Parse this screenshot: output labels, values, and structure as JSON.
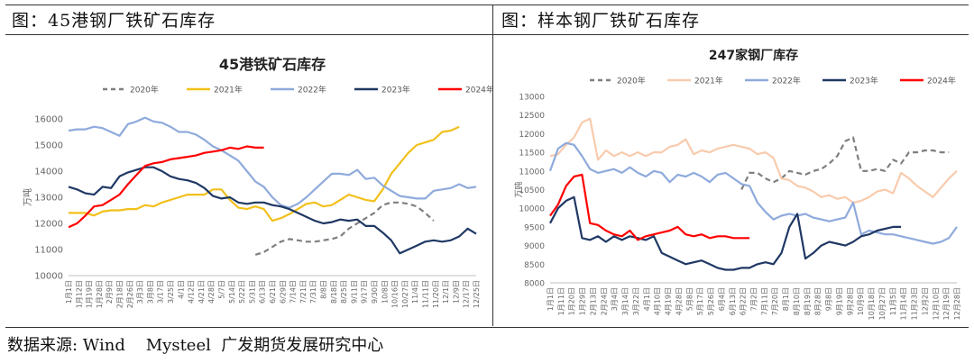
{
  "panels": {
    "left_title": "图：45港钢厂铁矿石库存",
    "right_title": "图：样本钢厂铁矿石库存"
  },
  "source": "数据来源: Wind    Mysteel  广发期货发展研究中心",
  "chart_data": [
    {
      "type": "line",
      "title": "45港铁矿石库存",
      "ylabel": "万吨",
      "ylim": [
        10000,
        16000
      ],
      "yticks": [
        10000,
        11000,
        12000,
        13000,
        14000,
        15000,
        16000
      ],
      "legend_position": "top",
      "xticks": [
        "1月1日",
        "1月12日",
        "1月19日",
        "1月28日",
        "2月9日",
        "2月18日",
        "2月26日",
        "3月3日",
        "3月8日",
        "3/17日",
        "3/25日",
        "4/1日",
        "4/12日",
        "4/21日",
        "4/28日",
        "5/7日",
        "5/14日",
        "5/22日",
        "5/31日",
        "6/13日",
        "6/21日",
        "6/29日",
        "7/14日",
        "7/21日",
        "7/31日",
        "8/8日",
        "8/18日",
        "8/25日",
        "9/11日",
        "9/17日",
        "9/30日",
        "10/8日",
        "10/16日",
        "10/27日",
        "11/4日",
        "11/11日",
        "11/20日",
        "12/1日",
        "12/9日",
        "12/17日",
        "12/25日"
      ],
      "series": [
        {
          "name": "2020年",
          "color": "#7f7f7f",
          "dash": true,
          "values": [
            null,
            null,
            null,
            null,
            null,
            null,
            null,
            null,
            null,
            null,
            null,
            null,
            null,
            null,
            null,
            null,
            null,
            null,
            null,
            null,
            null,
            null,
            10800,
            10900,
            11100,
            11300,
            11400,
            11350,
            11300,
            11300,
            11350,
            11400,
            11500,
            11800,
            12000,
            12200,
            12400,
            12700,
            12800,
            12800,
            12750,
            12650,
            12400,
            12100
          ]
        },
        {
          "name": "2021年",
          "color": "#f2c01b",
          "dash": false,
          "values": [
            12400,
            12400,
            12400,
            12300,
            12450,
            12500,
            12500,
            12550,
            12550,
            12700,
            12650,
            12800,
            12900,
            13000,
            13100,
            13100,
            13100,
            13300,
            13300,
            12900,
            12600,
            12550,
            12650,
            12550,
            12100,
            12200,
            12350,
            12550,
            12750,
            12800,
            12650,
            12700,
            12900,
            13100,
            13000,
            12900,
            12850,
            13300,
            13900,
            14300,
            14700,
            15000,
            15100,
            15200,
            15500,
            15550,
            15700
          ]
        },
        {
          "name": "2022年",
          "color": "#8faadc",
          "dash": false,
          "values": [
            15550,
            15600,
            15600,
            15700,
            15650,
            15500,
            15350,
            15800,
            15900,
            16050,
            15900,
            15850,
            15700,
            15500,
            15500,
            15400,
            15200,
            14950,
            14800,
            14600,
            14400,
            14000,
            13600,
            13400,
            13000,
            12700,
            12600,
            12750,
            13000,
            13300,
            13600,
            13900,
            13900,
            13850,
            14050,
            13700,
            13750,
            13450,
            13250,
            13050,
            13000,
            12950,
            12950,
            13250,
            13300,
            13350,
            13500,
            13350,
            13400
          ]
        },
        {
          "name": "2023年",
          "color": "#1f3864",
          "dash": false,
          "values": [
            13400,
            13300,
            13150,
            13100,
            13400,
            13350,
            13800,
            13950,
            14050,
            14150,
            14150,
            14000,
            13800,
            13700,
            13650,
            13550,
            13350,
            13050,
            12950,
            13000,
            12800,
            12750,
            12800,
            12800,
            12700,
            12650,
            12550,
            12400,
            12250,
            12100,
            12000,
            12050,
            12150,
            12100,
            12150,
            11900,
            11900,
            11650,
            11350,
            10850,
            11000,
            11150,
            11300,
            11350,
            11300,
            11350,
            11500,
            11800,
            11600
          ]
        },
        {
          "name": "2024年",
          "color": "#ff0000",
          "dash": false,
          "values": [
            11850,
            12000,
            12300,
            12650,
            12700,
            12900,
            13100,
            13500,
            13850,
            14200,
            14300,
            14350,
            14450,
            14500,
            14550,
            14600,
            14700,
            14750,
            14800,
            14900,
            14850,
            14950,
            14900,
            14900
          ]
        }
      ]
    },
    {
      "type": "line",
      "title": "247家钢厂库存",
      "ylabel": "万吨",
      "ylim": [
        8000,
        13000
      ],
      "yticks": [
        8000,
        8500,
        9000,
        9500,
        10000,
        10500,
        11000,
        11500,
        12000,
        12500,
        13000
      ],
      "legend_position": "top",
      "xticks": [
        "1月1日",
        "1月11日",
        "1月20日",
        "1月29日",
        "2月13日",
        "2月24日",
        "3月4日",
        "3月14日",
        "3月22日",
        "4月1日",
        "4月10日",
        "4月19日",
        "4月28日",
        "5月8日",
        "5月17日",
        "5月26日",
        "6月4日",
        "6月13日",
        "6月22日",
        "7月2日",
        "7月11日",
        "7月20日",
        "8月1日",
        "8月10日",
        "8月19日",
        "8月28日",
        "9月8日",
        "9月19日",
        "9月28日",
        "10月9日",
        "10月18日",
        "10月27日",
        "11月5日",
        "11月14日",
        "11月23日",
        "12月2日",
        "12月10日",
        "12月19日",
        "12月28日"
      ],
      "series": [
        {
          "name": "2020年",
          "color": "#7f7f7f",
          "dash": true,
          "values": [
            null,
            null,
            null,
            null,
            null,
            null,
            null,
            null,
            null,
            null,
            null,
            null,
            null,
            null,
            null,
            null,
            null,
            null,
            null,
            null,
            null,
            null,
            null,
            null,
            10500,
            10950,
            10950,
            10800,
            10700,
            10800,
            11000,
            10950,
            10900,
            11000,
            11050,
            11200,
            11400,
            11800,
            11900,
            11000,
            11000,
            11050,
            11000,
            11300,
            11200,
            11500,
            11500,
            11550,
            11550,
            11500,
            11500
          ]
        },
        {
          "name": "2021年",
          "color": "#f8cbad",
          "dash": false,
          "values": [
            11400,
            11450,
            11700,
            11900,
            12300,
            12400,
            11300,
            11550,
            11400,
            11500,
            11400,
            11500,
            11400,
            11500,
            11500,
            11650,
            11700,
            11850,
            11450,
            11550,
            11500,
            11600,
            11650,
            11700,
            11650,
            11600,
            11450,
            11500,
            11350,
            10800,
            10750,
            10600,
            10550,
            10450,
            10300,
            10350,
            10250,
            10300,
            10150,
            10200,
            10300,
            10450,
            10500,
            10400,
            10950,
            10800,
            10600,
            10450,
            10300,
            10550,
            10800,
            11000
          ]
        },
        {
          "name": "2022年",
          "color": "#8faadc",
          "dash": false,
          "values": [
            11000,
            11600,
            11750,
            11700,
            11400,
            11050,
            10950,
            11000,
            11050,
            10950,
            11100,
            10950,
            10850,
            11000,
            10950,
            10700,
            10900,
            10850,
            10950,
            10850,
            10700,
            10900,
            10950,
            10800,
            10650,
            10600,
            10150,
            9900,
            9700,
            9800,
            9850,
            9800,
            9850,
            9750,
            9700,
            9650,
            9700,
            9750,
            10150,
            9300,
            9400,
            9350,
            9300,
            9300,
            9250,
            9200,
            9150,
            9100,
            9050,
            9100,
            9200,
            9500
          ]
        },
        {
          "name": "2023年",
          "color": "#1f3864",
          "dash": false,
          "values": [
            9600,
            10000,
            10200,
            10300,
            9200,
            9150,
            9250,
            9100,
            9250,
            9150,
            9250,
            9200,
            9150,
            9250,
            8800,
            8700,
            8600,
            8500,
            8550,
            8600,
            8500,
            8400,
            8350,
            8350,
            8400,
            8400,
            8500,
            8550,
            8500,
            8800,
            9500,
            9850,
            8650,
            8800,
            9000,
            9100,
            9050,
            9000,
            9100,
            9250,
            9300,
            9400,
            9450,
            9500,
            9500
          ]
        },
        {
          "name": "2024年",
          "color": "#ff0000",
          "dash": false,
          "values": [
            9800,
            10100,
            10600,
            10850,
            10900,
            9600,
            9550,
            9400,
            9300,
            9250,
            9400,
            9150,
            9250,
            9300,
            9350,
            9400,
            9500,
            9300,
            9250,
            9300,
            9200,
            9250,
            9250,
            9200,
            9200,
            9200
          ]
        }
      ]
    }
  ]
}
